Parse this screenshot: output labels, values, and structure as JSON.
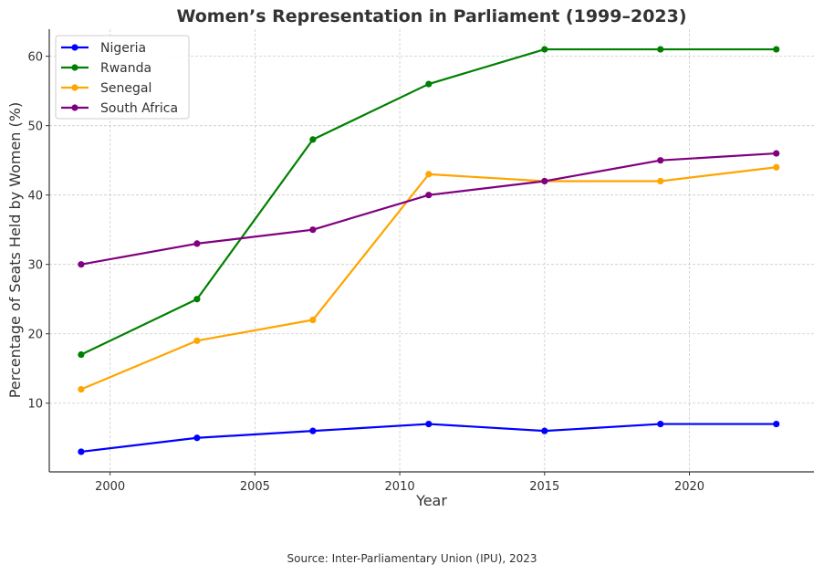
{
  "chart_data": {
    "type": "line",
    "title": "Women’s Representation in Parliament (1999–2023)",
    "xlabel": "Year",
    "ylabel": "Percentage of Seats Held by Women (%)",
    "x": [
      1999,
      2003,
      2007,
      2011,
      2015,
      2019,
      2023
    ],
    "xlim": [
      1997.9,
      2024.3
    ],
    "ylim": [
      0.1,
      63.9
    ],
    "xticks": [
      2000,
      2005,
      2010,
      2015,
      2020
    ],
    "yticks": [
      10,
      20,
      30,
      40,
      50,
      60
    ],
    "grid": true,
    "legend_position": "top-left",
    "series": [
      {
        "name": "Nigeria",
        "color": "#0000ff",
        "values": [
          3,
          5,
          6,
          7,
          6,
          7,
          7
        ]
      },
      {
        "name": "Rwanda",
        "color": "#008000",
        "values": [
          17,
          25,
          48,
          56,
          61,
          61,
          61
        ]
      },
      {
        "name": "Senegal",
        "color": "#ffa500",
        "values": [
          12,
          19,
          22,
          43,
          42,
          42,
          44
        ]
      },
      {
        "name": "South Africa",
        "color": "#800080",
        "values": [
          30,
          33,
          35,
          40,
          42,
          45,
          46
        ]
      }
    ]
  },
  "source": "Source: Inter-Parliamentary Union (IPU), 2023"
}
